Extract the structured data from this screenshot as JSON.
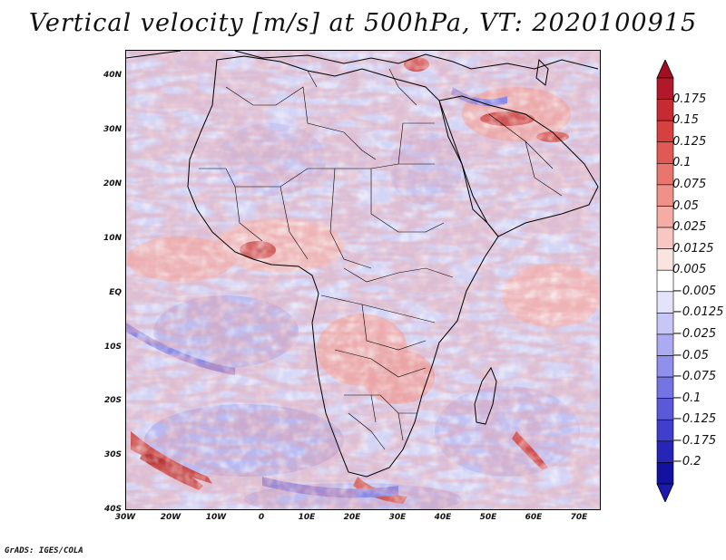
{
  "title": "Vertical velocity [m/s] at 500hPa, VT: 2020100915",
  "credit": "GrADS: IGES/COLA",
  "lat_ticks": [
    "40N",
    "30N",
    "20N",
    "10N",
    "EQ",
    "10S",
    "20S",
    "30S",
    "40S"
  ],
  "lon_ticks": [
    "30W",
    "20W",
    "10W",
    "0",
    "10E",
    "20E",
    "30E",
    "40E",
    "50E",
    "60E",
    "70E"
  ],
  "colorbar": {
    "labels": [
      "0.175",
      "0.15",
      "0.125",
      "0.1",
      "0.075",
      "0.05",
      "0.025",
      "0.0125",
      "0.005",
      "−0.005",
      "−0.0125",
      "−0.025",
      "−0.05",
      "−0.075",
      "−0.1",
      "−0.125",
      "−0.175",
      "−0.2"
    ],
    "colors": [
      "#b2182b",
      "#c62b33",
      "#d6403f",
      "#e05a55",
      "#e8766e",
      "#ef9189",
      "#f4aca5",
      "#f8c7c1",
      "#fbe3e0",
      "#ffffff",
      "#e3e3fb",
      "#c7c7f7",
      "#ababf2",
      "#8f8fec",
      "#7474e4",
      "#5959d9",
      "#3f3fcb",
      "#2525b8",
      "#12129e"
    ],
    "top_arrow_color": "#a01020",
    "bottom_arrow_color": "#1a1ab0"
  },
  "map": {
    "ocean_color": "#d8d8f6",
    "land_outline_color": "#000000",
    "hotspot_color": "#c8403e",
    "descent_color": "#6a6ae0"
  }
}
